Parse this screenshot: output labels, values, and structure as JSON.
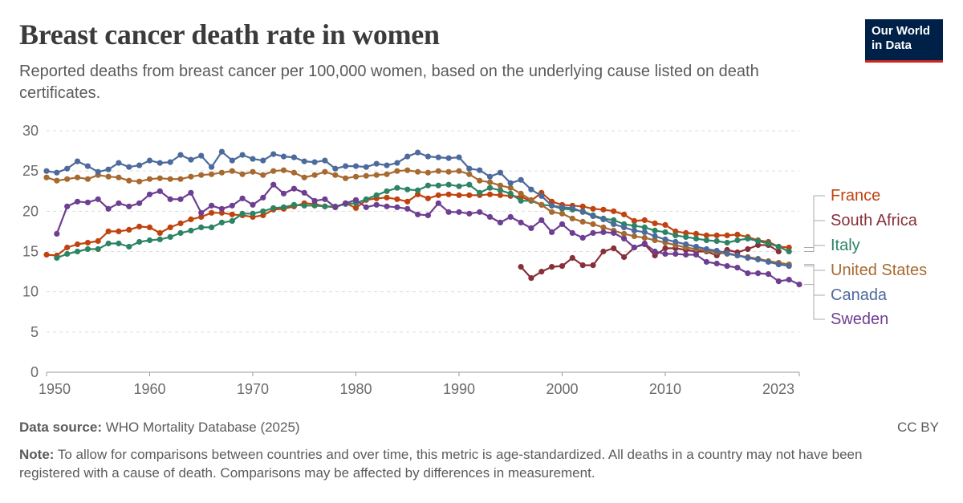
{
  "header": {
    "title": "Breast cancer death rate in women",
    "subtitle": "Reported deaths from breast cancer per 100,000 women, based on the underlying cause listed on death certificates.",
    "logo_line1": "Our World",
    "logo_line2": "in Data"
  },
  "footer": {
    "source_label": "Data source:",
    "source_text": "WHO Mortality Database (2025)",
    "license": "CC BY",
    "note_label": "Note:",
    "note_text": "To allow for comparisons between countries and over time, this metric is age-standardized. All deaths in a country may not have been registered with a cause of death. Comparisons may be affected by differences in measurement."
  },
  "chart_data": {
    "type": "line",
    "title": "Breast cancer death rate in women",
    "xlabel": "",
    "ylabel": "",
    "xlim": [
      1950,
      2023
    ],
    "ylim": [
      0,
      30
    ],
    "x_ticks": [
      1950,
      1960,
      1970,
      1980,
      1990,
      2000,
      2010,
      2023
    ],
    "y_ticks": [
      0,
      5,
      10,
      15,
      20,
      25,
      30
    ],
    "grid": "horizontal dashed",
    "legend_placement": "right, line end labels",
    "series": [
      {
        "name": "France",
        "color": "#c0430f",
        "x": [
          1950,
          1951,
          1952,
          1953,
          1954,
          1955,
          1956,
          1957,
          1958,
          1959,
          1960,
          1961,
          1962,
          1963,
          1964,
          1965,
          1966,
          1967,
          1968,
          1969,
          1970,
          1971,
          1972,
          1973,
          1974,
          1975,
          1976,
          1977,
          1978,
          1979,
          1980,
          1981,
          1982,
          1983,
          1984,
          1985,
          1986,
          1987,
          1988,
          1989,
          1990,
          1991,
          1992,
          1993,
          1994,
          1995,
          1996,
          1997,
          1998,
          1999,
          2000,
          2001,
          2002,
          2003,
          2004,
          2005,
          2006,
          2007,
          2008,
          2009,
          2010,
          2011,
          2012,
          2013,
          2014,
          2015,
          2016,
          2017,
          2018,
          2019,
          2020,
          2021,
          2022
        ],
        "y": [
          14.6,
          14.5,
          15.5,
          15.9,
          16.1,
          16.3,
          17.5,
          17.5,
          17.7,
          18.1,
          18.0,
          17.3,
          18.0,
          18.5,
          19.0,
          19.3,
          19.8,
          19.8,
          19.6,
          19.5,
          19.3,
          19.5,
          20.2,
          20.3,
          20.6,
          21.0,
          20.9,
          20.6,
          20.5,
          21.0,
          20.4,
          21.4,
          21.6,
          21.7,
          21.5,
          21.2,
          22.1,
          21.6,
          22.0,
          22.1,
          22.0,
          22.0,
          22.0,
          22.1,
          22.0,
          21.9,
          21.8,
          21.3,
          22.3,
          21.2,
          20.8,
          20.7,
          20.6,
          20.3,
          20.2,
          20.0,
          19.6,
          18.8,
          18.9,
          18.5,
          18.3,
          17.5,
          17.3,
          17.2,
          17.0,
          17.0,
          17.0,
          17.1,
          16.8,
          16.4,
          16.2,
          15.6,
          15.5
        ]
      },
      {
        "name": "South Africa",
        "color": "#883039",
        "x": [
          1996,
          1997,
          1998,
          1999,
          2000,
          2001,
          2002,
          2003,
          2004,
          2005,
          2006,
          2007,
          2008,
          2009,
          2010,
          2011,
          2012,
          2013,
          2014,
          2015,
          2016,
          2017,
          2018,
          2019,
          2020,
          2021
        ],
        "y": [
          13.1,
          11.7,
          12.5,
          13.1,
          13.2,
          14.2,
          13.3,
          13.3,
          15.0,
          15.4,
          14.3,
          15.5,
          15.9,
          14.5,
          15.4,
          15.4,
          15.2,
          15.0,
          15.0,
          14.5,
          15.2,
          14.9,
          15.3,
          15.8,
          15.8,
          15.0
        ]
      },
      {
        "name": "Italy",
        "color": "#2c8465",
        "x": [
          1951,
          1952,
          1953,
          1954,
          1955,
          1956,
          1957,
          1958,
          1959,
          1960,
          1961,
          1962,
          1963,
          1964,
          1965,
          1966,
          1967,
          1968,
          1969,
          1970,
          1971,
          1972,
          1973,
          1974,
          1975,
          1976,
          1977,
          1978,
          1979,
          1980,
          1981,
          1982,
          1983,
          1984,
          1985,
          1986,
          1987,
          1988,
          1989,
          1990,
          1991,
          1992,
          1993,
          1994,
          1995,
          1996,
          1997,
          1998,
          1999,
          2000,
          2001,
          2002,
          2003,
          2004,
          2005,
          2006,
          2007,
          2008,
          2009,
          2010,
          2011,
          2012,
          2013,
          2014,
          2015,
          2016,
          2017,
          2018,
          2019,
          2020,
          2021,
          2022
        ],
        "y": [
          14.2,
          14.7,
          15.0,
          15.3,
          15.3,
          16.0,
          16.0,
          15.6,
          16.2,
          16.4,
          16.5,
          16.8,
          17.3,
          17.6,
          18.0,
          18.0,
          18.6,
          18.8,
          19.7,
          19.7,
          20.0,
          20.4,
          20.5,
          20.8,
          20.7,
          20.7,
          20.6,
          20.6,
          20.9,
          21.0,
          21.5,
          22.0,
          22.5,
          22.9,
          22.7,
          22.6,
          23.2,
          23.2,
          23.3,
          23.1,
          23.3,
          22.3,
          22.9,
          22.6,
          22.2,
          21.3,
          21.3,
          20.8,
          20.7,
          20.3,
          20.2,
          20.0,
          19.5,
          19.1,
          18.9,
          18.4,
          18.2,
          18.0,
          17.6,
          17.4,
          17.0,
          16.8,
          16.6,
          16.4,
          16.3,
          16.1,
          16.4,
          16.6,
          16.3,
          16.0,
          15.6,
          15.0
        ]
      },
      {
        "name": "United States",
        "color": "#a66a30",
        "x": [
          1950,
          1951,
          1952,
          1953,
          1954,
          1955,
          1956,
          1957,
          1958,
          1959,
          1960,
          1961,
          1962,
          1963,
          1964,
          1965,
          1966,
          1967,
          1968,
          1969,
          1970,
          1971,
          1972,
          1973,
          1974,
          1975,
          1976,
          1977,
          1978,
          1979,
          1980,
          1981,
          1982,
          1983,
          1984,
          1985,
          1986,
          1987,
          1988,
          1989,
          1990,
          1991,
          1992,
          1993,
          1994,
          1995,
          1996,
          1997,
          1998,
          1999,
          2000,
          2001,
          2002,
          2003,
          2004,
          2005,
          2006,
          2007,
          2008,
          2009,
          2010,
          2011,
          2012,
          2013,
          2014,
          2015,
          2016,
          2017,
          2018,
          2019,
          2020,
          2021,
          2022
        ],
        "y": [
          24.2,
          23.8,
          24.0,
          24.2,
          24.0,
          24.5,
          24.3,
          24.2,
          23.8,
          23.7,
          24.0,
          24.1,
          24.0,
          24.0,
          24.3,
          24.5,
          24.6,
          24.8,
          25.0,
          24.6,
          24.9,
          24.5,
          25.0,
          25.1,
          24.8,
          24.2,
          24.5,
          24.9,
          24.5,
          24.1,
          24.3,
          24.4,
          24.5,
          24.6,
          25.0,
          25.1,
          24.9,
          24.8,
          25.0,
          24.9,
          25.0,
          24.6,
          23.8,
          23.6,
          23.2,
          22.9,
          22.2,
          21.4,
          20.8,
          19.9,
          19.7,
          19.1,
          18.7,
          18.4,
          18.0,
          17.6,
          17.2,
          16.9,
          16.7,
          16.4,
          16.1,
          15.8,
          15.5,
          15.3,
          15.1,
          14.9,
          14.7,
          14.5,
          14.3,
          14.1,
          13.8,
          13.6,
          13.4
        ]
      },
      {
        "name": "Canada",
        "color": "#4c6a9c",
        "x": [
          1950,
          1951,
          1952,
          1953,
          1954,
          1955,
          1956,
          1957,
          1958,
          1959,
          1960,
          1961,
          1962,
          1963,
          1964,
          1965,
          1966,
          1967,
          1968,
          1969,
          1970,
          1971,
          1972,
          1973,
          1974,
          1975,
          1976,
          1977,
          1978,
          1979,
          1980,
          1981,
          1982,
          1983,
          1984,
          1985,
          1986,
          1987,
          1988,
          1989,
          1990,
          1991,
          1992,
          1993,
          1994,
          1995,
          1996,
          1997,
          1998,
          1999,
          2000,
          2001,
          2002,
          2003,
          2004,
          2005,
          2006,
          2007,
          2008,
          2009,
          2010,
          2011,
          2012,
          2013,
          2014,
          2015,
          2016,
          2017,
          2018,
          2019,
          2020,
          2021,
          2022
        ],
        "y": [
          25.0,
          24.8,
          25.3,
          26.2,
          25.6,
          24.9,
          25.2,
          26.0,
          25.5,
          25.7,
          26.3,
          26.0,
          26.1,
          27.0,
          26.4,
          26.9,
          25.5,
          27.4,
          26.3,
          27.0,
          26.5,
          26.3,
          27.1,
          26.8,
          26.7,
          26.2,
          26.1,
          26.3,
          25.3,
          25.6,
          25.6,
          25.5,
          25.9,
          25.7,
          26.0,
          26.8,
          27.3,
          26.8,
          26.7,
          26.6,
          26.7,
          25.3,
          25.1,
          24.3,
          24.8,
          23.5,
          23.9,
          22.7,
          21.9,
          20.7,
          20.5,
          20.4,
          19.9,
          19.4,
          19.0,
          18.4,
          18.0,
          17.6,
          17.4,
          16.9,
          16.5,
          16.2,
          15.9,
          15.6,
          15.3,
          15.1,
          14.8,
          14.5,
          14.2,
          14.0,
          13.7,
          13.4,
          13.2
        ]
      },
      {
        "name": "Sweden",
        "color": "#6d3e91",
        "x": [
          1951,
          1952,
          1953,
          1954,
          1955,
          1956,
          1957,
          1958,
          1959,
          1960,
          1961,
          1962,
          1963,
          1964,
          1965,
          1966,
          1967,
          1968,
          1969,
          1970,
          1971,
          1972,
          1973,
          1974,
          1975,
          1976,
          1977,
          1978,
          1979,
          1980,
          1981,
          1982,
          1983,
          1984,
          1985,
          1986,
          1987,
          1988,
          1989,
          1990,
          1991,
          1992,
          1993,
          1994,
          1995,
          1996,
          1997,
          1998,
          1999,
          2000,
          2001,
          2002,
          2003,
          2004,
          2005,
          2006,
          2007,
          2008,
          2009,
          2010,
          2011,
          2012,
          2013,
          2014,
          2015,
          2016,
          2017,
          2018,
          2019,
          2020,
          2021,
          2022,
          2023
        ],
        "y": [
          17.2,
          20.6,
          21.2,
          21.1,
          21.5,
          20.3,
          21.0,
          20.6,
          21.0,
          22.1,
          22.5,
          21.5,
          21.5,
          22.3,
          19.8,
          20.7,
          20.3,
          20.7,
          21.6,
          20.8,
          21.7,
          23.3,
          22.2,
          22.8,
          22.3,
          21.3,
          21.5,
          20.5,
          21.0,
          21.4,
          20.5,
          20.8,
          20.6,
          20.5,
          20.3,
          19.6,
          19.5,
          21.0,
          19.9,
          19.9,
          19.7,
          19.9,
          19.3,
          18.6,
          19.3,
          18.6,
          17.9,
          18.9,
          17.4,
          18.4,
          17.3,
          16.7,
          17.3,
          17.4,
          17.3,
          16.6,
          15.5,
          16.0,
          15.0,
          14.7,
          14.7,
          14.6,
          14.6,
          13.7,
          13.5,
          13.2,
          13.0,
          12.3,
          12.3,
          12.2,
          11.3,
          11.5,
          10.9
        ]
      }
    ]
  }
}
